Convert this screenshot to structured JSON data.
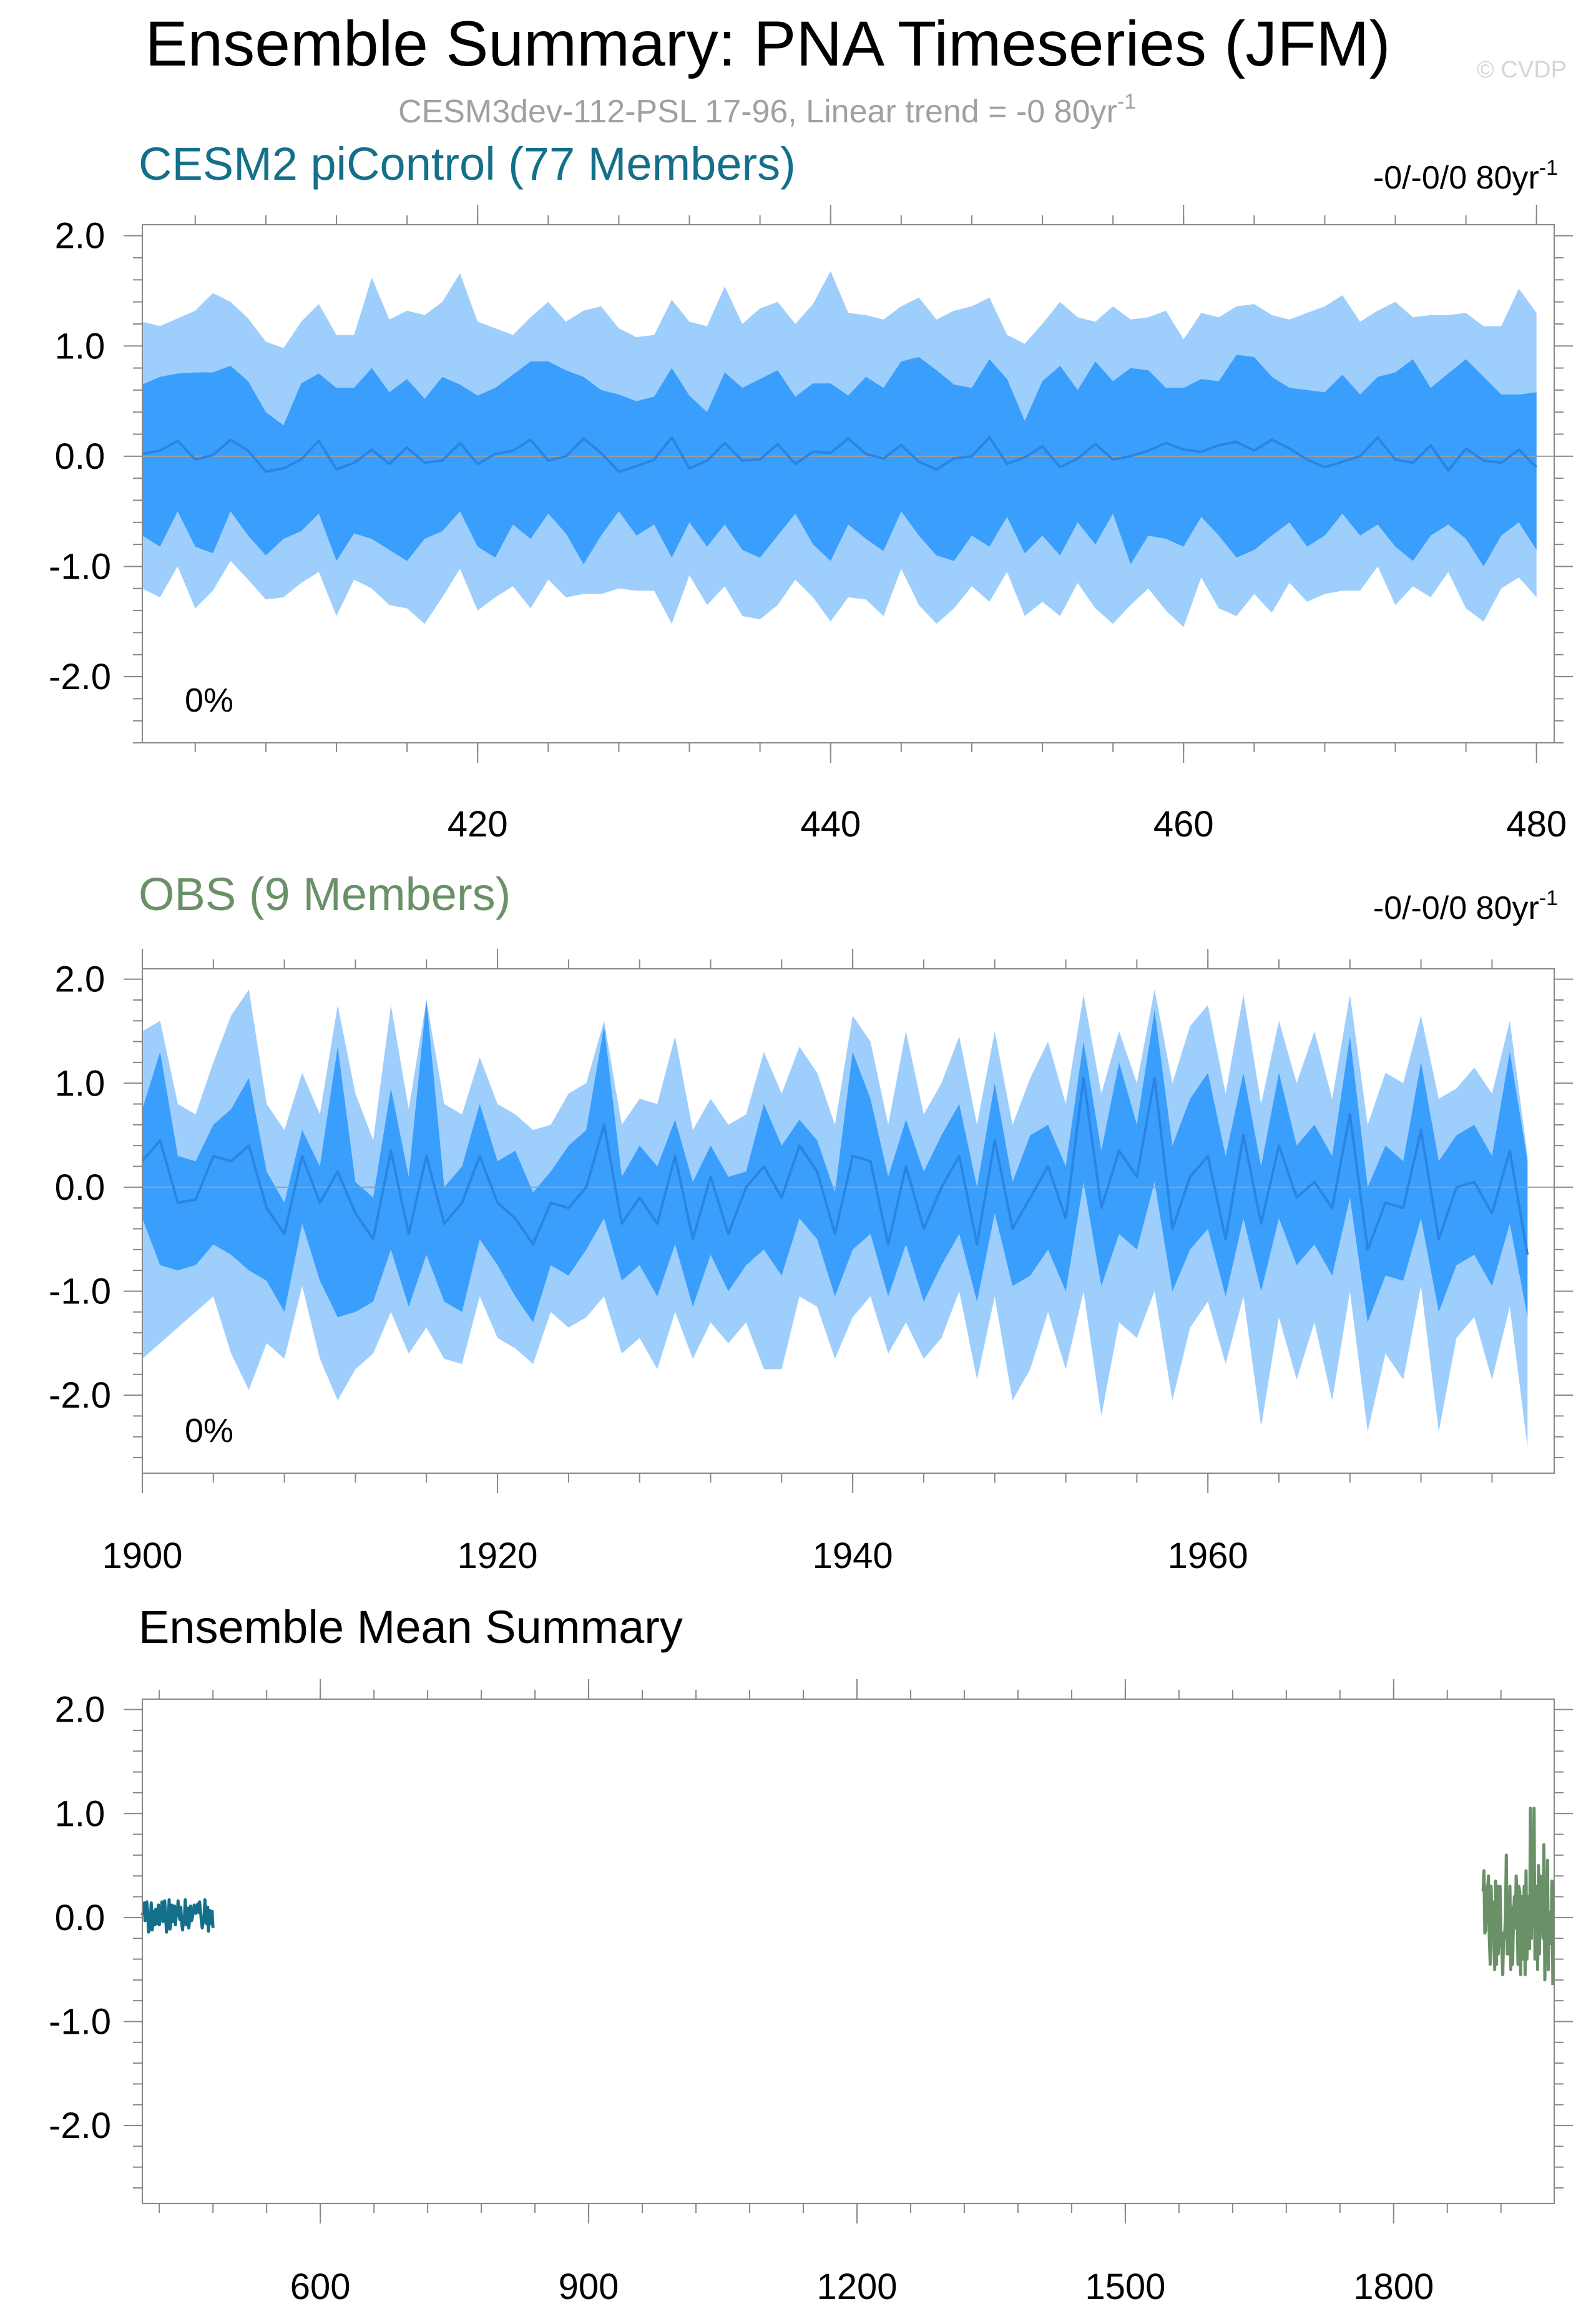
{
  "page": {
    "title": "Ensemble Summary: PNA Timeseries (JFM)",
    "watermark": "© CVDP",
    "subtitle": "CESM3dev-112-PSL 17-96, Linear trend = -0 80yr",
    "subtitle_sup": "-1"
  },
  "colors": {
    "band_outer": "#9ecefc",
    "band_inner": "#3a9efc",
    "mean_line": "#2a84e4",
    "zero_line": "#9aa0a8",
    "cesm_label": "#14708a",
    "obs_label": "#6a9068",
    "subtitle": "#a0a0a0",
    "watermark": "#d6d6d6",
    "axis": "#000000"
  },
  "chart_data": [
    {
      "id": "cesm",
      "type": "area",
      "title": "CESM2 piControl (77 Members)",
      "trend_label": "-0/-0/0 80yr",
      "trend_sup": "-1",
      "percent_label": "0%",
      "xlim": [
        401,
        481
      ],
      "ylim": [
        -2.6,
        2.1
      ],
      "xticks": [
        420,
        440,
        460,
        480
      ],
      "xtick_labels": [
        "420",
        "440",
        "460",
        "480"
      ],
      "yticks": [
        2.0,
        1.0,
        0.0,
        -1.0,
        -2.0
      ],
      "ytick_labels": [
        "2.0",
        "1.0",
        "0.0",
        "-1.0",
        "-2.0"
      ],
      "x_start": 401,
      "x_end": 480,
      "mean": [
        0.02,
        0.05,
        0.14,
        -0.03,
        0.01,
        0.15,
        0.05,
        -0.14,
        -0.11,
        -0.03,
        0.14,
        -0.12,
        -0.06,
        0.06,
        -0.07,
        0.08,
        -0.06,
        -0.04,
        0.12,
        -0.07,
        0.02,
        0.05,
        0.15,
        -0.04,
        0.0,
        0.16,
        0.03,
        -0.14,
        -0.09,
        -0.03,
        0.17,
        -0.11,
        -0.04,
        0.12,
        -0.04,
        -0.03,
        0.11,
        -0.07,
        0.04,
        0.03,
        0.16,
        0.02,
        -0.02,
        0.1,
        -0.05,
        -0.12,
        -0.02,
        0.0,
        0.17,
        -0.07,
        -0.01,
        0.09,
        -0.1,
        -0.02,
        0.11,
        -0.03,
        0.0,
        0.05,
        0.12,
        0.06,
        0.04,
        0.1,
        0.13,
        0.05,
        0.15,
        0.07,
        -0.03,
        -0.1,
        -0.05,
        0.0,
        0.17,
        -0.03,
        -0.06,
        0.1,
        -0.13,
        0.07,
        -0.04,
        -0.06,
        0.06,
        -0.1
      ],
      "inner_upper": [
        0.65,
        0.72,
        0.75,
        0.76,
        0.76,
        0.82,
        0.68,
        0.4,
        0.28,
        0.66,
        0.75,
        0.62,
        0.62,
        0.8,
        0.58,
        0.7,
        0.52,
        0.72,
        0.65,
        0.55,
        0.62,
        0.74,
        0.86,
        0.86,
        0.78,
        0.72,
        0.6,
        0.56,
        0.5,
        0.54,
        0.8,
        0.55,
        0.4,
        0.76,
        0.62,
        0.7,
        0.78,
        0.54,
        0.66,
        0.66,
        0.55,
        0.72,
        0.62,
        0.86,
        0.9,
        0.78,
        0.65,
        0.62,
        0.88,
        0.7,
        0.32,
        0.68,
        0.82,
        0.6,
        0.86,
        0.68,
        0.8,
        0.78,
        0.62,
        0.62,
        0.7,
        0.68,
        0.92,
        0.9,
        0.72,
        0.62,
        0.6,
        0.58,
        0.74,
        0.56,
        0.72,
        0.76,
        0.88,
        0.62,
        0.75,
        0.88,
        0.72,
        0.56,
        0.56,
        0.58
      ],
      "inner_lower": [
        -0.72,
        -0.82,
        -0.5,
        -0.82,
        -0.88,
        -0.5,
        -0.72,
        -0.9,
        -0.75,
        -0.68,
        -0.52,
        -0.95,
        -0.7,
        -0.75,
        -0.85,
        -0.95,
        -0.75,
        -0.68,
        -0.5,
        -0.82,
        -0.92,
        -0.62,
        -0.75,
        -0.52,
        -0.7,
        -0.98,
        -0.72,
        -0.5,
        -0.72,
        -0.62,
        -0.92,
        -0.6,
        -0.82,
        -0.62,
        -0.85,
        -0.92,
        -0.72,
        -0.52,
        -0.8,
        -0.95,
        -0.62,
        -0.75,
        -0.86,
        -0.5,
        -0.72,
        -0.9,
        -0.95,
        -0.72,
        -0.82,
        -0.55,
        -0.88,
        -0.72,
        -0.9,
        -0.6,
        -0.8,
        -0.52,
        -0.98,
        -0.72,
        -0.75,
        -0.82,
        -0.55,
        -0.72,
        -0.92,
        -0.85,
        -0.72,
        -0.6,
        -0.82,
        -0.72,
        -0.52,
        -0.72,
        -0.62,
        -0.82,
        -0.95,
        -0.72,
        -0.62,
        -0.75,
        -1.0,
        -0.72,
        -0.6,
        -0.85
      ],
      "outer_upper": [
        1.22,
        1.18,
        1.25,
        1.32,
        1.48,
        1.4,
        1.25,
        1.04,
        0.98,
        1.22,
        1.38,
        1.1,
        1.1,
        1.62,
        1.24,
        1.32,
        1.28,
        1.4,
        1.66,
        1.22,
        1.16,
        1.1,
        1.26,
        1.4,
        1.22,
        1.32,
        1.36,
        1.16,
        1.08,
        1.1,
        1.42,
        1.22,
        1.18,
        1.54,
        1.2,
        1.34,
        1.4,
        1.2,
        1.38,
        1.68,
        1.3,
        1.28,
        1.24,
        1.36,
        1.44,
        1.24,
        1.32,
        1.36,
        1.44,
        1.1,
        1.02,
        1.2,
        1.4,
        1.26,
        1.22,
        1.36,
        1.24,
        1.26,
        1.32,
        1.06,
        1.3,
        1.26,
        1.36,
        1.38,
        1.28,
        1.24,
        1.3,
        1.36,
        1.46,
        1.22,
        1.32,
        1.4,
        1.26,
        1.28,
        1.28,
        1.3,
        1.18,
        1.18,
        1.52,
        1.3
      ],
      "outer_lower": [
        -1.2,
        -1.28,
        -1.0,
        -1.38,
        -1.22,
        -0.95,
        -1.12,
        -1.3,
        -1.28,
        -1.15,
        -1.05,
        -1.45,
        -1.12,
        -1.2,
        -1.35,
        -1.38,
        -1.52,
        -1.28,
        -1.02,
        -1.4,
        -1.28,
        -1.18,
        -1.38,
        -1.12,
        -1.28,
        -1.25,
        -1.25,
        -1.2,
        -1.22,
        -1.22,
        -1.52,
        -1.08,
        -1.35,
        -1.18,
        -1.45,
        -1.48,
        -1.35,
        -1.12,
        -1.28,
        -1.5,
        -1.28,
        -1.3,
        -1.45,
        -1.02,
        -1.35,
        -1.52,
        -1.38,
        -1.18,
        -1.32,
        -1.05,
        -1.45,
        -1.32,
        -1.45,
        -1.15,
        -1.38,
        -1.52,
        -1.35,
        -1.2,
        -1.4,
        -1.55,
        -1.1,
        -1.38,
        -1.45,
        -1.25,
        -1.42,
        -1.15,
        -1.32,
        -1.25,
        -1.22,
        -1.22,
        -1.0,
        -1.35,
        -1.18,
        -1.28,
        -1.05,
        -1.38,
        -1.5,
        -1.2,
        -1.1,
        -1.28
      ]
    },
    {
      "id": "obs",
      "type": "area",
      "title": "OBS (9 Members)",
      "trend_label": "-0/-0/0 80yr",
      "trend_sup": "-1",
      "percent_label": "0%",
      "xlim": [
        1900,
        1979.5
      ],
      "ylim": [
        -2.75,
        2.1
      ],
      "xticks": [
        1900,
        1920,
        1940,
        1960
      ],
      "xtick_labels": [
        "1900",
        "1920",
        "1940",
        "1960"
      ],
      "yticks": [
        2.0,
        1.0,
        0.0,
        -1.0,
        -2.0
      ],
      "ytick_labels": [
        "2.0",
        "1.0",
        "0.0",
        "-1.0",
        "-2.0"
      ],
      "x_start": 1900,
      "x_end": 1978,
      "mean": [
        0.25,
        0.45,
        -0.15,
        -0.12,
        0.3,
        0.25,
        0.4,
        -0.2,
        -0.45,
        0.3,
        -0.15,
        0.15,
        -0.25,
        -0.5,
        0.35,
        -0.45,
        0.3,
        -0.35,
        -0.15,
        0.3,
        -0.15,
        -0.3,
        -0.55,
        -0.15,
        -0.2,
        0.0,
        0.6,
        -0.35,
        -0.1,
        -0.35,
        0.3,
        -0.5,
        0.1,
        -0.45,
        0.0,
        0.2,
        -0.1,
        0.4,
        0.15,
        -0.45,
        0.3,
        0.25,
        -0.55,
        0.2,
        -0.4,
        0.0,
        0.3,
        -0.55,
        0.45,
        -0.4,
        -0.1,
        0.2,
        -0.3,
        1.05,
        -0.2,
        0.35,
        0.1,
        1.05,
        -0.4,
        0.1,
        0.3,
        -0.5,
        0.5,
        -0.35,
        0.4,
        -0.1,
        0.05,
        -0.2,
        0.7,
        -0.6,
        -0.15,
        -0.2,
        0.55,
        -0.5,
        0.0,
        0.05,
        -0.25,
        0.35,
        -0.65
      ],
      "inner_upper": [
        0.75,
        1.3,
        0.3,
        0.25,
        0.6,
        0.75,
        1.05,
        0.15,
        -0.15,
        0.55,
        0.2,
        1.35,
        0.05,
        -0.1,
        0.95,
        0.1,
        1.8,
        0.0,
        0.2,
        0.8,
        0.25,
        0.35,
        -0.05,
        0.15,
        0.4,
        0.55,
        1.55,
        0.1,
        0.4,
        0.2,
        0.65,
        0.05,
        0.4,
        0.1,
        0.15,
        0.8,
        0.4,
        0.65,
        0.45,
        -0.05,
        1.3,
        0.85,
        0.1,
        0.65,
        0.15,
        0.5,
        0.8,
        0.0,
        1.0,
        0.05,
        0.5,
        0.6,
        0.2,
        1.4,
        0.35,
        1.2,
        0.6,
        1.7,
        0.4,
        0.85,
        1.1,
        0.3,
        1.1,
        0.2,
        1.1,
        0.4,
        0.6,
        0.3,
        1.45,
        0.0,
        0.4,
        0.25,
        1.2,
        0.25,
        0.5,
        0.6,
        0.3,
        1.3,
        0.25
      ],
      "inner_lower": [
        -0.3,
        -0.75,
        -0.8,
        -0.75,
        -0.55,
        -0.65,
        -0.8,
        -0.9,
        -1.2,
        -0.35,
        -0.9,
        -1.25,
        -1.2,
        -1.1,
        -0.6,
        -1.15,
        -0.65,
        -1.1,
        -1.2,
        -0.5,
        -0.75,
        -1.05,
        -1.3,
        -0.75,
        -0.85,
        -0.6,
        -0.3,
        -0.9,
        -0.75,
        -1.05,
        -0.55,
        -1.15,
        -0.65,
        -1.0,
        -0.75,
        -0.6,
        -0.85,
        -0.3,
        -0.5,
        -1.05,
        -0.6,
        -0.45,
        -1.05,
        -0.55,
        -1.1,
        -0.75,
        -0.45,
        -1.1,
        -0.25,
        -0.95,
        -0.85,
        -0.6,
        -1.0,
        0.05,
        -0.95,
        -0.45,
        -0.6,
        0.05,
        -1.0,
        -0.6,
        -0.4,
        -1.05,
        -0.3,
        -1.0,
        -0.3,
        -0.75,
        -0.55,
        -0.85,
        -0.1,
        -1.3,
        -0.85,
        -0.9,
        -0.3,
        -1.2,
        -0.75,
        -0.65,
        -0.95,
        -0.35,
        -1.25
      ],
      "outer_upper": [
        1.5,
        1.6,
        0.8,
        0.7,
        1.2,
        1.65,
        1.9,
        0.8,
        0.55,
        1.1,
        0.7,
        1.75,
        0.9,
        0.45,
        1.75,
        0.75,
        1.8,
        0.8,
        0.7,
        1.25,
        0.8,
        0.7,
        0.55,
        0.6,
        0.9,
        1.0,
        1.6,
        0.6,
        0.85,
        0.8,
        1.45,
        0.55,
        0.85,
        0.6,
        0.7,
        1.3,
        0.9,
        1.35,
        1.1,
        0.6,
        1.65,
        1.4,
        0.6,
        1.5,
        0.7,
        1.0,
        1.45,
        0.6,
        1.5,
        0.6,
        1.05,
        1.4,
        0.8,
        1.85,
        0.9,
        1.5,
        1.0,
        1.9,
        1.0,
        1.55,
        1.75,
        0.9,
        1.85,
        0.8,
        1.6,
        1.0,
        1.5,
        0.85,
        1.85,
        0.6,
        1.1,
        1.0,
        1.65,
        0.85,
        0.95,
        1.15,
        0.9,
        1.6,
        0.3
      ],
      "outer_lower": [
        -1.65,
        -1.5,
        -1.35,
        -1.2,
        -1.05,
        -1.6,
        -1.95,
        -1.5,
        -1.65,
        -0.95,
        -1.65,
        -2.05,
        -1.75,
        -1.6,
        -1.2,
        -1.6,
        -1.35,
        -1.65,
        -1.7,
        -1.05,
        -1.45,
        -1.55,
        -1.7,
        -1.2,
        -1.35,
        -1.25,
        -1.05,
        -1.6,
        -1.45,
        -1.75,
        -1.2,
        -1.65,
        -1.3,
        -1.5,
        -1.3,
        -1.75,
        -1.75,
        -1.05,
        -1.15,
        -1.65,
        -1.25,
        -1.05,
        -1.6,
        -1.3,
        -1.65,
        -1.45,
        -1.0,
        -1.85,
        -1.05,
        -2.05,
        -1.75,
        -1.2,
        -1.75,
        -1.0,
        -2.2,
        -1.3,
        -1.45,
        -1.0,
        -2.05,
        -1.35,
        -1.1,
        -1.7,
        -1.05,
        -2.3,
        -1.25,
        -1.85,
        -1.3,
        -2.05,
        -1.0,
        -2.35,
        -1.6,
        -1.85,
        -0.95,
        -2.35,
        -1.45,
        -1.25,
        -1.85,
        -1.15,
        -2.5
      ]
    },
    {
      "id": "summary",
      "type": "line",
      "title": "Ensemble Mean Summary",
      "xlim": [
        401,
        1979.5
      ],
      "ylim": [
        -2.75,
        2.1
      ],
      "xticks": [
        600,
        900,
        1200,
        1500,
        1800
      ],
      "xtick_labels": [
        "600",
        "900",
        "1200",
        "1500",
        "1800"
      ],
      "yticks": [
        2.0,
        1.0,
        0.0,
        -1.0,
        -2.0
      ],
      "ytick_labels": [
        "2.0",
        "1.0",
        "0.0",
        "-1.0",
        "-2.0"
      ],
      "series": [
        {
          "source": "cesm",
          "color": "#14708a",
          "x_start": 401,
          "x_end": 480
        },
        {
          "source": "obs",
          "color": "#6a9068",
          "x_start": 1900,
          "x_end": 1978
        }
      ]
    }
  ]
}
